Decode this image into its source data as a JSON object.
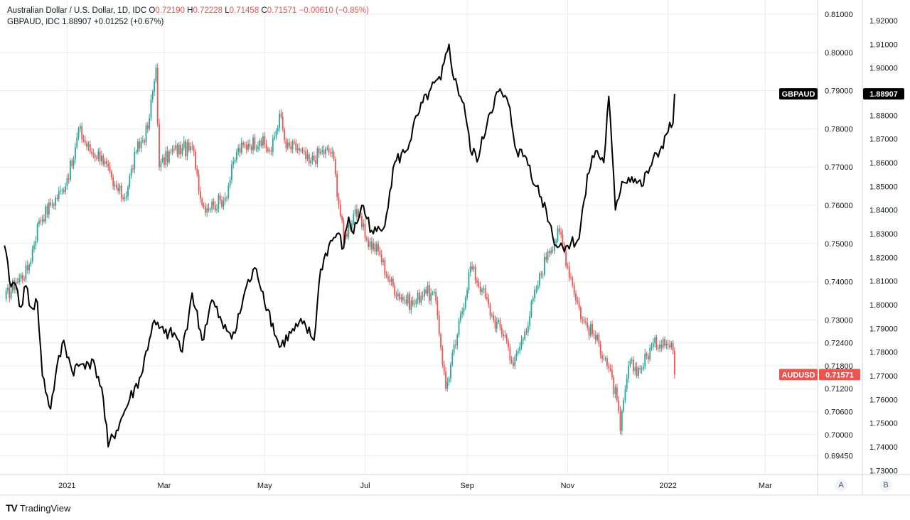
{
  "legend": {
    "main": {
      "title": "Australian Dollar / U.S. Dollar, 1D, IDC",
      "o_label": "O",
      "o_value": "0.72190",
      "h_label": "H",
      "h_value": "0.72228",
      "l_label": "L",
      "l_value": "0.71458",
      "c_label": "C",
      "c_value": "0.71571",
      "change": "−0.00610 (−0.85%)"
    },
    "compare": {
      "title": "GBPAUD, IDC",
      "value": "1.88907",
      "change": "+0.01252 (+0.67%)"
    }
  },
  "footer": {
    "brand": "TradingView",
    "mark": "TV"
  },
  "scale_buttons": {
    "a": "A",
    "b": "B"
  },
  "colors": {
    "up": "#26a69a",
    "down": "#ef5350",
    "line": "#000000",
    "grid": "#e8ecf2",
    "axis_text": "#131722",
    "badge_red": "#ef5350",
    "badge_black": "#000000"
  },
  "chart_data": {
    "type": "line",
    "x_ticks": [
      "2021",
      "Mar",
      "May",
      "Jul",
      "Sep",
      "Nov",
      "2022",
      "Mar"
    ],
    "series": [
      {
        "name": "AUDUSD",
        "axis": "left",
        "y_ticks": [
          "0.81000",
          "0.80000",
          "0.79000",
          "0.78000",
          "0.77000",
          "0.76000",
          "0.75000",
          "0.74000",
          "0.73000",
          "0.72400",
          "0.71800",
          "0.71200",
          "0.70600",
          "0.70000",
          "0.69450"
        ],
        "last_label": "0.71571",
        "points": [
          [
            "2020-11-24",
            0.7355
          ],
          [
            "2020-12-01",
            0.74
          ],
          [
            "2020-12-08",
            0.743
          ],
          [
            "2020-12-15",
            0.756
          ],
          [
            "2020-12-22",
            0.76
          ],
          [
            "2020-12-29",
            0.764
          ],
          [
            "2021-01-05",
            0.772
          ],
          [
            "2021-01-08",
            0.78
          ],
          [
            "2021-01-15",
            0.774
          ],
          [
            "2021-01-22",
            0.773
          ],
          [
            "2021-01-29",
            0.765
          ],
          [
            "2021-02-05",
            0.762
          ],
          [
            "2021-02-12",
            0.774
          ],
          [
            "2021-02-19",
            0.78
          ],
          [
            "2021-02-24",
            0.796
          ],
          [
            "2021-02-26",
            0.77
          ],
          [
            "2021-03-05",
            0.774
          ],
          [
            "2021-03-12",
            0.775
          ],
          [
            "2021-03-19",
            0.774
          ],
          [
            "2021-03-24",
            0.76
          ],
          [
            "2021-03-31",
            0.76
          ],
          [
            "2021-04-07",
            0.762
          ],
          [
            "2021-04-14",
            0.774
          ],
          [
            "2021-04-21",
            0.776
          ],
          [
            "2021-04-28",
            0.777
          ],
          [
            "2021-05-05",
            0.774
          ],
          [
            "2021-05-10",
            0.784
          ],
          [
            "2021-05-14",
            0.775
          ],
          [
            "2021-05-21",
            0.775
          ],
          [
            "2021-05-28",
            0.771
          ],
          [
            "2021-06-04",
            0.774
          ],
          [
            "2021-06-11",
            0.774
          ],
          [
            "2021-06-18",
            0.751
          ],
          [
            "2021-06-25",
            0.759
          ],
          [
            "2021-07-02",
            0.751
          ],
          [
            "2021-07-09",
            0.748
          ],
          [
            "2021-07-16",
            0.74
          ],
          [
            "2021-07-23",
            0.736
          ],
          [
            "2021-07-30",
            0.734
          ],
          [
            "2021-08-06",
            0.738
          ],
          [
            "2021-08-13",
            0.735
          ],
          [
            "2021-08-19",
            0.712
          ],
          [
            "2021-08-26",
            0.726
          ],
          [
            "2021-09-03",
            0.744
          ],
          [
            "2021-09-10",
            0.738
          ],
          [
            "2021-09-17",
            0.73
          ],
          [
            "2021-09-24",
            0.726
          ],
          [
            "2021-09-29",
            0.718
          ],
          [
            "2021-10-06",
            0.727
          ],
          [
            "2021-10-13",
            0.738
          ],
          [
            "2021-10-20",
            0.748
          ],
          [
            "2021-10-27",
            0.753
          ],
          [
            "2021-11-03",
            0.741
          ],
          [
            "2021-11-10",
            0.73
          ],
          [
            "2021-11-17",
            0.726
          ],
          [
            "2021-11-24",
            0.72
          ],
          [
            "2021-12-01",
            0.709
          ],
          [
            "2021-12-03",
            0.701
          ],
          [
            "2021-12-08",
            0.718
          ],
          [
            "2021-12-15",
            0.717
          ],
          [
            "2021-12-22",
            0.723
          ],
          [
            "2021-12-29",
            0.725
          ],
          [
            "2022-01-04",
            0.7219
          ],
          [
            "2022-01-05",
            0.71571
          ]
        ]
      },
      {
        "name": "GBPAUD",
        "axis": "right",
        "y_ticks": [
          "1.92000",
          "1.91000",
          "1.90000",
          "1.89000",
          "1.88000",
          "1.87000",
          "1.86000",
          "1.85000",
          "1.84000",
          "1.83000",
          "1.82000",
          "1.81000",
          "1.80000",
          "1.79000",
          "1.78000",
          "1.77000",
          "1.76000",
          "1.75000",
          "1.74000",
          "1.73000"
        ],
        "last_label": "1.88907",
        "points": [
          [
            "2020-11-24",
            1.825
          ],
          [
            "2020-11-27",
            1.81
          ],
          [
            "2020-12-01",
            1.808
          ],
          [
            "2020-12-04",
            1.799
          ],
          [
            "2020-12-07",
            1.808
          ],
          [
            "2020-12-10",
            1.799
          ],
          [
            "2020-12-14",
            1.801
          ],
          [
            "2020-12-17",
            1.77
          ],
          [
            "2020-12-22",
            1.756
          ],
          [
            "2020-12-25",
            1.77
          ],
          [
            "2020-12-30",
            1.785
          ],
          [
            "2021-01-04",
            1.772
          ],
          [
            "2021-01-08",
            1.774
          ],
          [
            "2021-01-13",
            1.776
          ],
          [
            "2021-01-18",
            1.774
          ],
          [
            "2021-01-22",
            1.765
          ],
          [
            "2021-01-26",
            1.74
          ],
          [
            "2021-02-02",
            1.75
          ],
          [
            "2021-02-08",
            1.76
          ],
          [
            "2021-02-15",
            1.77
          ],
          [
            "2021-02-22",
            1.792
          ],
          [
            "2021-03-01",
            1.788
          ],
          [
            "2021-03-08",
            1.787
          ],
          [
            "2021-03-12",
            1.78
          ],
          [
            "2021-03-18",
            1.805
          ],
          [
            "2021-03-24",
            1.785
          ],
          [
            "2021-03-30",
            1.802
          ],
          [
            "2021-04-06",
            1.79
          ],
          [
            "2021-04-13",
            1.788
          ],
          [
            "2021-04-20",
            1.808
          ],
          [
            "2021-04-26",
            1.815
          ],
          [
            "2021-05-03",
            1.798
          ],
          [
            "2021-05-10",
            1.782
          ],
          [
            "2021-05-17",
            1.788
          ],
          [
            "2021-05-24",
            1.792
          ],
          [
            "2021-05-31",
            1.785
          ],
          [
            "2021-06-04",
            1.815
          ],
          [
            "2021-06-09",
            1.825
          ],
          [
            "2021-06-14",
            1.83
          ],
          [
            "2021-06-18",
            1.824
          ],
          [
            "2021-06-21",
            1.837
          ],
          [
            "2021-06-24",
            1.83
          ],
          [
            "2021-06-29",
            1.842
          ],
          [
            "2021-07-06",
            1.83
          ],
          [
            "2021-07-12",
            1.832
          ],
          [
            "2021-07-19",
            1.86
          ],
          [
            "2021-07-26",
            1.865
          ],
          [
            "2021-08-02",
            1.88
          ],
          [
            "2021-08-09",
            1.89
          ],
          [
            "2021-08-16",
            1.895
          ],
          [
            "2021-08-21",
            1.91
          ],
          [
            "2021-08-24",
            1.895
          ],
          [
            "2021-08-30",
            1.885
          ],
          [
            "2021-09-03",
            1.865
          ],
          [
            "2021-09-08",
            1.862
          ],
          [
            "2021-09-14",
            1.88
          ],
          [
            "2021-09-20",
            1.89
          ],
          [
            "2021-09-26",
            1.885
          ],
          [
            "2021-10-01",
            1.865
          ],
          [
            "2021-10-07",
            1.862
          ],
          [
            "2021-10-13",
            1.85
          ],
          [
            "2021-10-19",
            1.84
          ],
          [
            "2021-10-25",
            1.825
          ],
          [
            "2021-11-01",
            1.825
          ],
          [
            "2021-11-08",
            1.828
          ],
          [
            "2021-11-13",
            1.855
          ],
          [
            "2021-11-18",
            1.865
          ],
          [
            "2021-11-23",
            1.86
          ],
          [
            "2021-11-26",
            1.888
          ],
          [
            "2021-11-30",
            1.84
          ],
          [
            "2021-12-04",
            1.852
          ],
          [
            "2021-12-10",
            1.854
          ],
          [
            "2021-12-16",
            1.85
          ],
          [
            "2021-12-21",
            1.858
          ],
          [
            "2021-12-27",
            1.865
          ],
          [
            "2021-12-31",
            1.872
          ],
          [
            "2022-01-04",
            1.8765
          ],
          [
            "2022-01-05",
            1.88907
          ]
        ]
      }
    ]
  }
}
